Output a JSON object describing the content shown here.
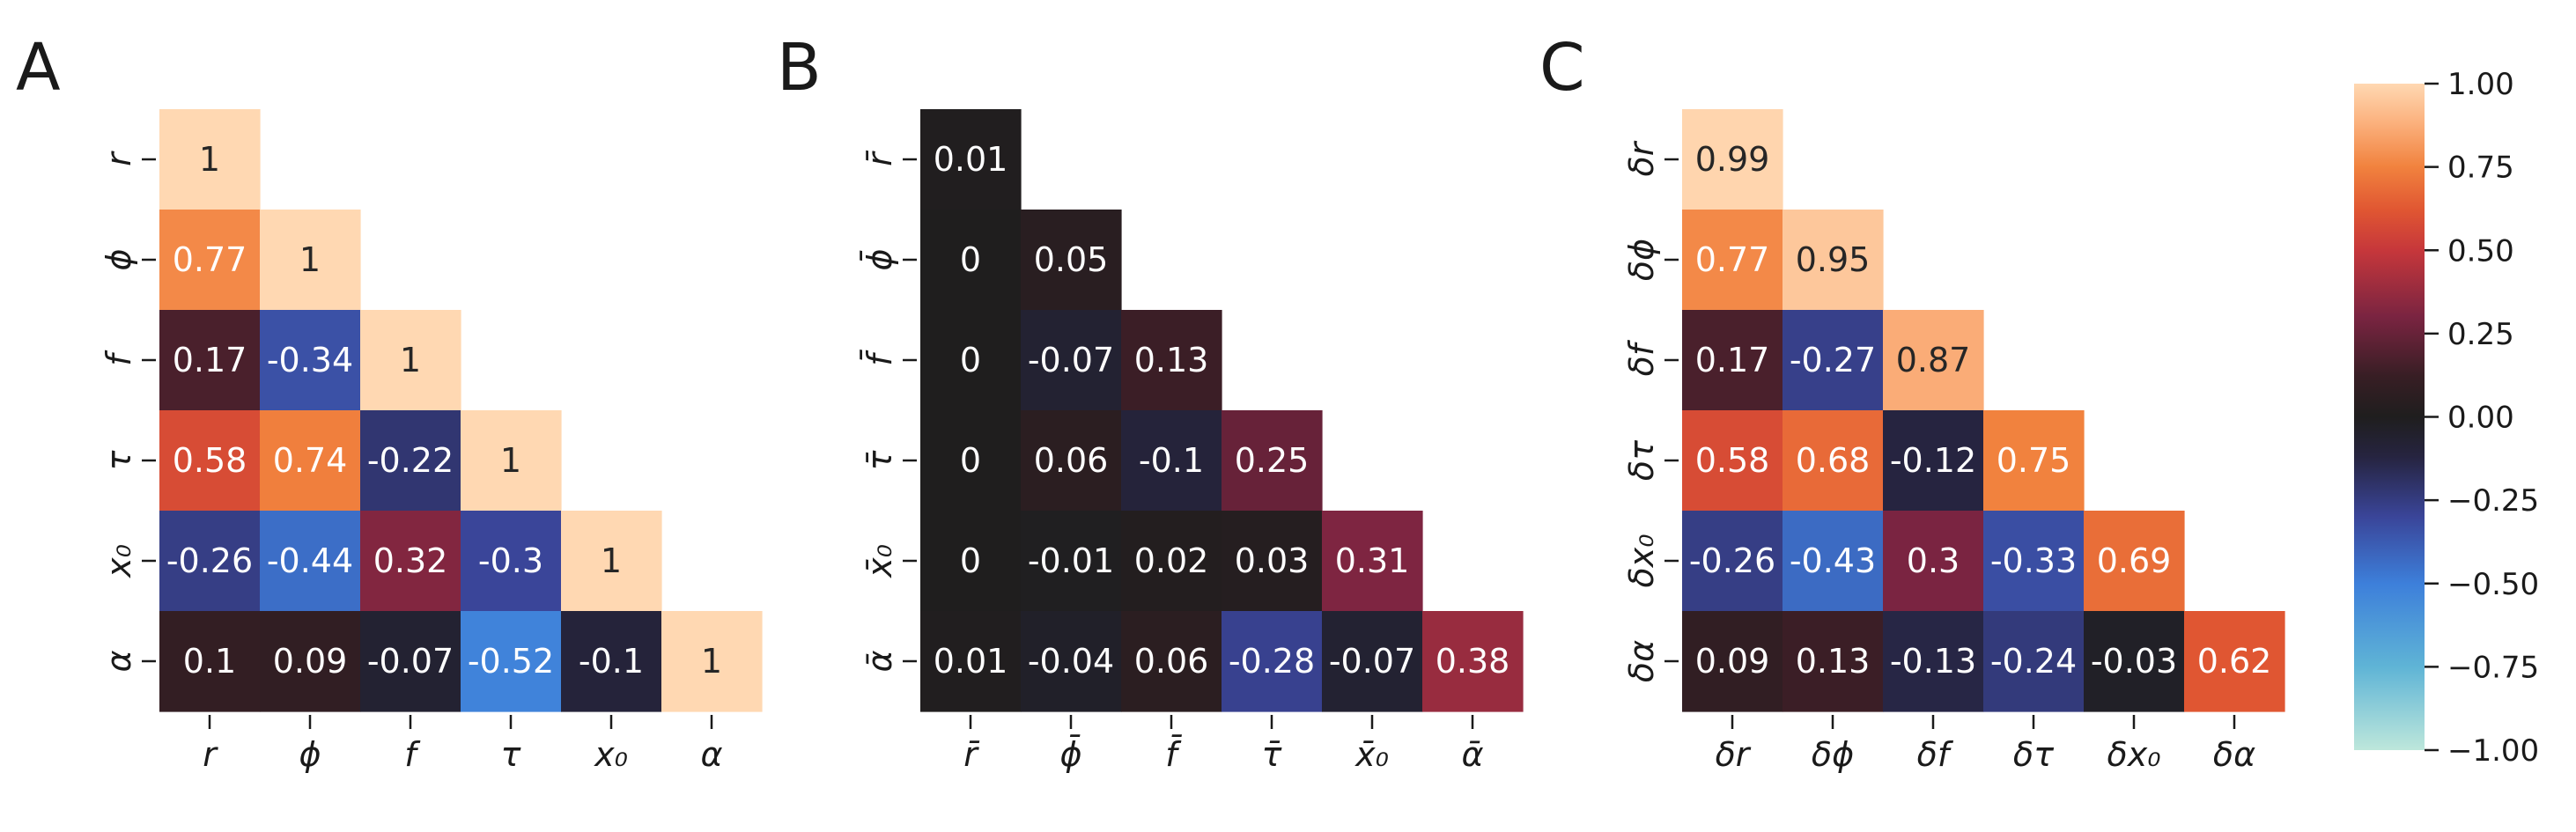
{
  "chart_data": [
    {
      "type": "heatmap",
      "panel_label": "A",
      "xticklabels": [
        "r",
        "ϕ",
        "f",
        "τ",
        "x₀",
        "α"
      ],
      "yticklabels": [
        "r",
        "ϕ",
        "f",
        "τ",
        "x₀",
        "α"
      ],
      "lower_triangle": true,
      "values": [
        [
          1
        ],
        [
          0.77,
          1
        ],
        [
          0.17,
          -0.34,
          1
        ],
        [
          0.58,
          0.74,
          -0.22,
          1
        ],
        [
          -0.26,
          -0.44,
          0.32,
          -0.3,
          1
        ],
        [
          0.1,
          0.09,
          -0.07,
          -0.52,
          -0.1,
          1
        ]
      ]
    },
    {
      "type": "heatmap",
      "panel_label": "B",
      "xticklabels": [
        "r̄",
        "ϕ̄",
        "f̄",
        "τ̄",
        "x̄₀",
        "ᾱ"
      ],
      "yticklabels": [
        "r̄",
        "ϕ̄",
        "f̄",
        "τ̄",
        "x̄₀",
        "ᾱ"
      ],
      "lower_triangle": true,
      "values": [
        [
          0.01
        ],
        [
          0,
          0.05
        ],
        [
          0,
          -0.07,
          0.13
        ],
        [
          0,
          0.06,
          -0.1,
          0.25
        ],
        [
          0,
          -0.01,
          0.02,
          0.03,
          0.31
        ],
        [
          0.01,
          -0.04,
          0.06,
          -0.28,
          -0.07,
          0.38
        ]
      ]
    },
    {
      "type": "heatmap",
      "panel_label": "C",
      "xticklabels": [
        "δr",
        "δϕ",
        "δf",
        "δτ",
        "δx₀",
        "δα"
      ],
      "yticklabels": [
        "δr",
        "δϕ",
        "δf",
        "δτ",
        "δx₀",
        "δα"
      ],
      "lower_triangle": true,
      "values": [
        [
          0.99
        ],
        [
          0.77,
          0.95
        ],
        [
          0.17,
          -0.27,
          0.87
        ],
        [
          0.58,
          0.68,
          -0.12,
          0.75
        ],
        [
          -0.26,
          -0.43,
          0.3,
          -0.33,
          0.69
        ],
        [
          0.09,
          0.13,
          -0.13,
          -0.24,
          -0.03,
          0.62
        ]
      ]
    }
  ],
  "colorbar": {
    "vmin": -1.0,
    "vmax": 1.0,
    "ticks": [
      "1.00",
      "0.75",
      "0.50",
      "0.25",
      "0.00",
      "−0.25",
      "−0.50",
      "−0.75",
      "−1.00"
    ],
    "colormap": "icefire",
    "stops": [
      {
        "v": -1.0,
        "color": "#bde7db"
      },
      {
        "v": -0.75,
        "color": "#5fb4d6"
      },
      {
        "v": -0.5,
        "color": "#3d7fda"
      },
      {
        "v": -0.3,
        "color": "#3a4599"
      },
      {
        "v": -0.12,
        "color": "#262440"
      },
      {
        "v": 0.0,
        "color": "#1f1e1e"
      },
      {
        "v": 0.12,
        "color": "#371e24"
      },
      {
        "v": 0.3,
        "color": "#7a2441"
      },
      {
        "v": 0.5,
        "color": "#c6373b"
      },
      {
        "v": 0.62,
        "color": "#e05632"
      },
      {
        "v": 0.75,
        "color": "#f1823e"
      },
      {
        "v": 0.88,
        "color": "#fbb07c"
      },
      {
        "v": 1.0,
        "color": "#ffd8b2"
      }
    ]
  }
}
